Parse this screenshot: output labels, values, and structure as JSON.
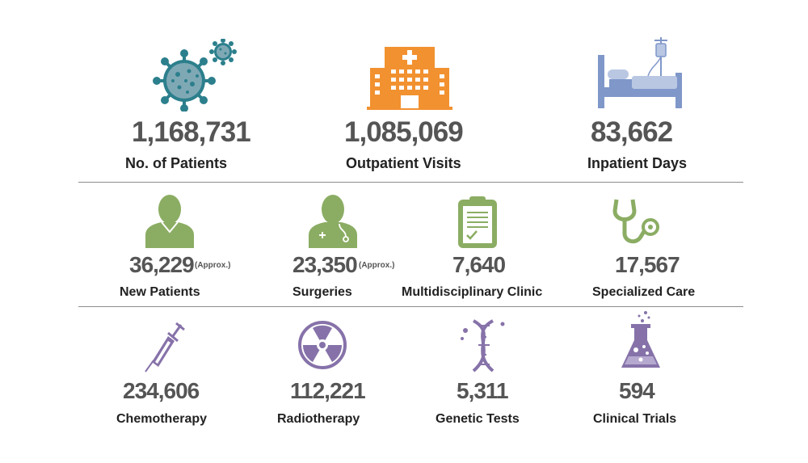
{
  "colors": {
    "virus": "#2c7f8c",
    "hospital": "#f29130",
    "bed": "#7f97c9",
    "green": "#8bad63",
    "purple": "#8672a9",
    "number": "#555555",
    "label": "#222222"
  },
  "row1": [
    {
      "icon": "virus-icon",
      "value": "1,168,731",
      "label": "No. of Patients"
    },
    {
      "icon": "hospital-icon",
      "value": "1,085,069",
      "label": "Outpatient Visits"
    },
    {
      "icon": "hospital-bed-icon",
      "value": "83,662",
      "label": "Inpatient Days"
    }
  ],
  "row2": [
    {
      "icon": "patient-icon",
      "value": "36,229",
      "note": "(Approx.)",
      "label": "New Patients"
    },
    {
      "icon": "doctor-icon",
      "value": "23,350",
      "note": "(Approx.)",
      "label": "Surgeries"
    },
    {
      "icon": "clipboard-icon",
      "value": "7,640",
      "label": "Multidisciplinary Clinic"
    },
    {
      "icon": "stethoscope-icon",
      "value": "17,567",
      "label": "Specialized Care"
    }
  ],
  "row3": [
    {
      "icon": "syringe-icon",
      "value": "234,606",
      "label": "Chemotherapy"
    },
    {
      "icon": "radiation-icon",
      "value": "112,221",
      "label": "Radiotherapy"
    },
    {
      "icon": "dna-icon",
      "value": "5,311",
      "label": "Genetic Tests"
    },
    {
      "icon": "flask-icon",
      "value": "594",
      "label": "Clinical Trials"
    }
  ]
}
